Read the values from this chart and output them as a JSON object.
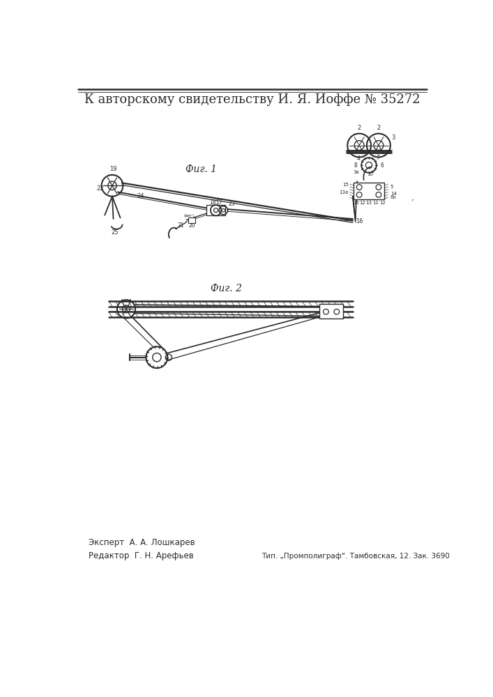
{
  "title": "К авторскому свидетельству И. Я. Иоффе № 35272",
  "title_fontsize": 13,
  "fig1_label": "Фиг. 1",
  "fig2_label": "Фиг. 2",
  "expert_line": "Эксперт  А. А. Лошкарев",
  "editor_line": "Редактор  Г. Н. Арефьев",
  "publisher_line": "Тип. „Промполиграф“. Тамбовская, 12. Зак. 3690",
  "bg_color": "#ffffff",
  "line_color": "#2a2a2a",
  "fig_width": 7.07,
  "fig_height": 10.0,
  "dpi": 100
}
